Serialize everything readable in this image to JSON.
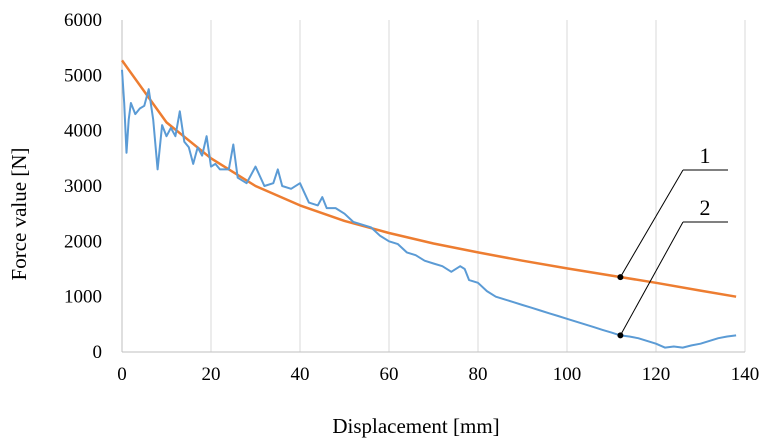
{
  "chart_data": {
    "type": "line",
    "title": "",
    "xlabel": "Displacement  [mm]",
    "ylabel": "Force value [N]",
    "xlim": [
      0,
      140
    ],
    "ylim": [
      0,
      6000
    ],
    "x_ticks": [
      0,
      20,
      40,
      60,
      80,
      100,
      120,
      140
    ],
    "y_ticks": [
      0,
      1000,
      2000,
      3000,
      4000,
      5000,
      6000
    ],
    "grid": "vertical",
    "legend": "none",
    "series": [
      {
        "name": "1",
        "color": "#ED7D31",
        "x": [
          0,
          10,
          20,
          30,
          40,
          50,
          60,
          70,
          80,
          90,
          100,
          110,
          120,
          130,
          138
        ],
        "y": [
          5270,
          4150,
          3500,
          3000,
          2650,
          2370,
          2150,
          1960,
          1800,
          1650,
          1510,
          1380,
          1250,
          1110,
          1000
        ]
      },
      {
        "name": "2",
        "color": "#5B9BD5",
        "x": [
          0,
          0.5,
          1,
          1.5,
          2,
          3,
          4,
          5,
          6,
          7,
          8,
          9,
          10,
          11,
          12,
          13,
          14,
          15,
          16,
          17,
          18,
          19,
          20,
          21,
          22,
          24,
          25,
          26,
          28,
          30,
          32,
          34,
          35,
          36,
          38,
          40,
          42,
          44,
          45,
          46,
          48,
          50,
          52,
          54,
          56,
          58,
          60,
          62,
          64,
          66,
          68,
          70,
          72,
          74,
          76,
          77,
          78,
          80,
          82,
          84,
          86,
          88,
          90,
          92,
          94,
          96,
          98,
          100,
          102,
          104,
          106,
          108,
          110,
          112,
          114,
          116,
          118,
          120,
          122,
          124,
          126,
          128,
          130,
          132,
          134,
          136,
          138
        ],
        "y": [
          5100,
          4500,
          3600,
          4200,
          4500,
          4300,
          4400,
          4450,
          4750,
          4200,
          3300,
          4100,
          3900,
          4050,
          3900,
          4350,
          3800,
          3700,
          3400,
          3700,
          3550,
          3900,
          3350,
          3400,
          3300,
          3300,
          3750,
          3150,
          3050,
          3350,
          3000,
          3050,
          3300,
          3000,
          2950,
          3050,
          2700,
          2650,
          2800,
          2600,
          2600,
          2500,
          2350,
          2300,
          2250,
          2100,
          2000,
          1950,
          1800,
          1750,
          1650,
          1600,
          1550,
          1450,
          1550,
          1500,
          1300,
          1250,
          1100,
          1000,
          950,
          900,
          850,
          800,
          750,
          700,
          650,
          600,
          550,
          500,
          450,
          400,
          350,
          300,
          280,
          250,
          200,
          150,
          80,
          100,
          80,
          120,
          150,
          200,
          250,
          280,
          300
        ]
      }
    ],
    "annotations": [
      {
        "label": "1",
        "series": "1",
        "x": 112
      },
      {
        "label": "2",
        "series": "2",
        "x": 112
      }
    ]
  }
}
